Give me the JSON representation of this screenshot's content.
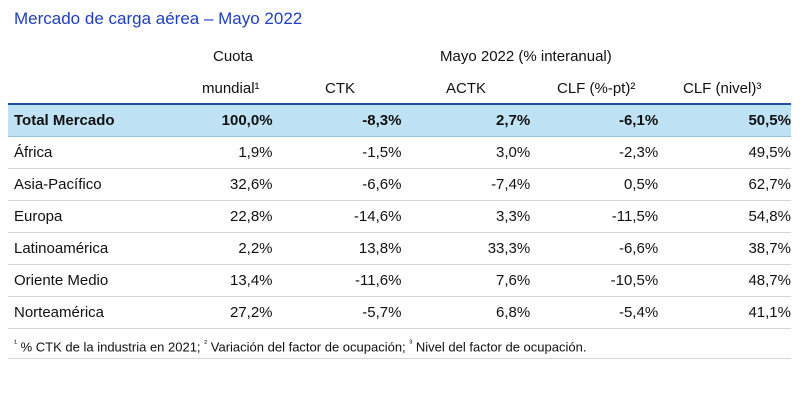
{
  "title": "Mercado de carga aérea – Mayo 2022",
  "header": {
    "cuota_line1": "Cuota",
    "cuota_line2": "mundial¹",
    "group": "Mayo 2022 (% interanual)",
    "ctk": "CTK",
    "actk": "ACTK",
    "clf_pt": "CLF (%-pt)²",
    "clf_nivel": "CLF (nivel)³"
  },
  "rows": [
    {
      "name": "Total Mercado",
      "cuota": "100,0%",
      "ctk": "-8,3%",
      "actk": "2,7%",
      "clf_pt": "-6,1%",
      "clf_nivel": "50,5%"
    },
    {
      "name": "África",
      "cuota": "1,9%",
      "ctk": "-1,5%",
      "actk": "3,0%",
      "clf_pt": "-2,3%",
      "clf_nivel": "49,5%"
    },
    {
      "name": "Asia-Pacífico",
      "cuota": "32,6%",
      "ctk": "-6,6%",
      "actk": "-7,4%",
      "clf_pt": "0,5%",
      "clf_nivel": "62,7%"
    },
    {
      "name": "Europa",
      "cuota": "22,8%",
      "ctk": "-14,6%",
      "actk": "3,3%",
      "clf_pt": "-11,5%",
      "clf_nivel": "54,8%"
    },
    {
      "name": "Latinoamérica",
      "cuota": "2,2%",
      "ctk": "13,8%",
      "actk": "33,3%",
      "clf_pt": "-6,6%",
      "clf_nivel": "38,7%"
    },
    {
      "name": "Oriente Medio",
      "cuota": "13,4%",
      "ctk": "-11,6%",
      "actk": "7,6%",
      "clf_pt": "-10,5%",
      "clf_nivel": "48,7%"
    },
    {
      "name": "Norteamérica",
      "cuota": "27,2%",
      "ctk": "-5,7%",
      "actk": "6,8%",
      "clf_pt": "-5,4%",
      "clf_nivel": "41,1%"
    }
  ],
  "footnote": {
    "n1": "¹",
    "t1": " % CTK de la industria en 2021; ",
    "n2": "²",
    "t2": " Variación del factor de ocupación; ",
    "n3": "³",
    "t3": " Nivel del factor de ocupación."
  },
  "colors": {
    "title": "#1f3fbf",
    "total_row_bg": "#bfe3f5",
    "total_row_border": "#1d4fa8",
    "row_divider": "#d6d6d6"
  }
}
